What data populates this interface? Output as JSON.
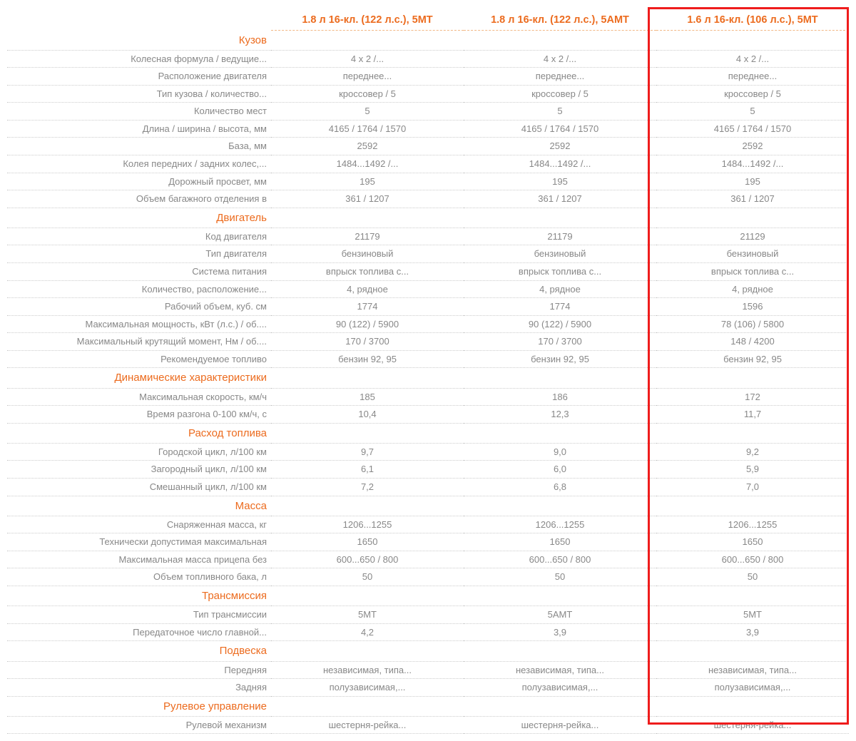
{
  "headers": [
    "1.8 л 16-кл. (122 л.с.), 5МТ",
    "1.8 л 16-кл. (122 л.с.), 5АМТ",
    "1.6 л 16-кл. (106 л.с.), 5МТ"
  ],
  "rows": [
    {
      "type": "section",
      "label": "Кузов"
    },
    {
      "type": "data",
      "label": "Колесная формула / ведущие...",
      "v": [
        "4 x 2 /...",
        "4 x 2 /...",
        "4 x 2 /..."
      ]
    },
    {
      "type": "data",
      "label": "Расположение двигателя",
      "v": [
        "переднее...",
        "переднее...",
        "переднее..."
      ]
    },
    {
      "type": "data",
      "label": "Тип кузова / количество...",
      "v": [
        "кроссовер / 5",
        "кроссовер / 5",
        "кроссовер / 5"
      ]
    },
    {
      "type": "data",
      "label": "Количество мест",
      "v": [
        "5",
        "5",
        "5"
      ]
    },
    {
      "type": "data",
      "label": "Длина / ширина / высота, мм",
      "v": [
        "4165 / 1764 / 1570",
        "4165 / 1764 / 1570",
        "4165 / 1764 / 1570"
      ]
    },
    {
      "type": "data",
      "label": "База, мм",
      "v": [
        "2592",
        "2592",
        "2592"
      ]
    },
    {
      "type": "data",
      "label": "Колея передних / задних колес,...",
      "v": [
        "1484...1492 /...",
        "1484...1492 /...",
        "1484...1492 /..."
      ]
    },
    {
      "type": "data",
      "label": "Дорожный просвет, мм",
      "v": [
        "195",
        "195",
        "195"
      ]
    },
    {
      "type": "data",
      "label": "Объем багажного отделения в",
      "v": [
        "361 / 1207",
        "361 / 1207",
        "361 / 1207"
      ]
    },
    {
      "type": "section",
      "label": "Двигатель"
    },
    {
      "type": "data",
      "label": "Код двигателя",
      "v": [
        "21179",
        "21179",
        "21129"
      ]
    },
    {
      "type": "data",
      "label": "Тип двигателя",
      "v": [
        "бензиновый",
        "бензиновый",
        "бензиновый"
      ]
    },
    {
      "type": "data",
      "label": "Система питания",
      "v": [
        "впрыск топлива с...",
        "впрыск топлива с...",
        "впрыск топлива с..."
      ]
    },
    {
      "type": "data",
      "label": "Количество, расположение...",
      "v": [
        "4, рядное",
        "4, рядное",
        "4, рядное"
      ]
    },
    {
      "type": "data",
      "label": "Рабочий объем, куб. см",
      "v": [
        "1774",
        "1774",
        "1596"
      ]
    },
    {
      "type": "data",
      "label": "Максимальная мощность, кВт (л.с.) / об....",
      "v": [
        "90 (122) / 5900",
        "90 (122) / 5900",
        "78 (106) / 5800"
      ]
    },
    {
      "type": "data",
      "label": "Максимальный крутящий момент, Нм / об....",
      "v": [
        "170 / 3700",
        "170 / 3700",
        "148 / 4200"
      ]
    },
    {
      "type": "data",
      "label": "Рекомендуемое топливо",
      "v": [
        "бензин 92, 95",
        "бензин 92, 95",
        "бензин 92, 95"
      ]
    },
    {
      "type": "section",
      "label": "Динамические характеристики"
    },
    {
      "type": "data",
      "label": "Максимальная скорость, км/ч",
      "v": [
        "185",
        "186",
        "172"
      ]
    },
    {
      "type": "data",
      "label": "Время разгона 0-100 км/ч, с",
      "v": [
        "10,4",
        "12,3",
        "11,7"
      ]
    },
    {
      "type": "section",
      "label": "Расход топлива"
    },
    {
      "type": "data",
      "label": "Городской цикл, л/100 км",
      "v": [
        "9,7",
        "9,0",
        "9,2"
      ]
    },
    {
      "type": "data",
      "label": "Загородный цикл, л/100 км",
      "v": [
        "6,1",
        "6,0",
        "5,9"
      ]
    },
    {
      "type": "data",
      "label": "Смешанный цикл, л/100 км",
      "v": [
        "7,2",
        "6,8",
        "7,0"
      ]
    },
    {
      "type": "section",
      "label": "Масса"
    },
    {
      "type": "data",
      "label": "Снаряженная масса, кг",
      "v": [
        "1206...1255",
        "1206...1255",
        "1206...1255"
      ]
    },
    {
      "type": "data",
      "label": "Технически допустимая максимальная",
      "v": [
        "1650",
        "1650",
        "1650"
      ]
    },
    {
      "type": "data",
      "label": "Максимальная масса прицепа без",
      "v": [
        "600...650 / 800",
        "600...650 / 800",
        "600...650 / 800"
      ]
    },
    {
      "type": "data",
      "label": "Объем топливного бака, л",
      "v": [
        "50",
        "50",
        "50"
      ]
    },
    {
      "type": "section",
      "label": "Трансмиссия"
    },
    {
      "type": "data",
      "label": "Тип трансмиссии",
      "v": [
        "5МТ",
        "5АМТ",
        "5МТ"
      ]
    },
    {
      "type": "data",
      "label": "Передаточное число главной...",
      "v": [
        "4,2",
        "3,9",
        "3,9"
      ]
    },
    {
      "type": "section",
      "label": "Подвеска"
    },
    {
      "type": "data",
      "label": "Передняя",
      "v": [
        "независимая, типа...",
        "независимая, типа...",
        "независимая, типа..."
      ]
    },
    {
      "type": "data",
      "label": "Задняя",
      "v": [
        "полузависимая,...",
        "полузависимая,...",
        "полузависимая,..."
      ]
    },
    {
      "type": "section",
      "label": "Рулевое управление"
    },
    {
      "type": "data",
      "label": "Рулевой механизм",
      "v": [
        "шестерня-рейка...",
        "шестерня-рейка...",
        "шестерня-рейка..."
      ]
    }
  ],
  "style": {
    "accent_color": "#ec6b1e",
    "text_color": "#888888",
    "row_border_color": "#cccccc",
    "header_underline_color": "#f2b785",
    "highlight_border_color": "#ef1c1c",
    "highlight_column_index": 2,
    "font_family": "Arial",
    "header_font_size_pt": 11,
    "body_font_size_pt": 10
  }
}
